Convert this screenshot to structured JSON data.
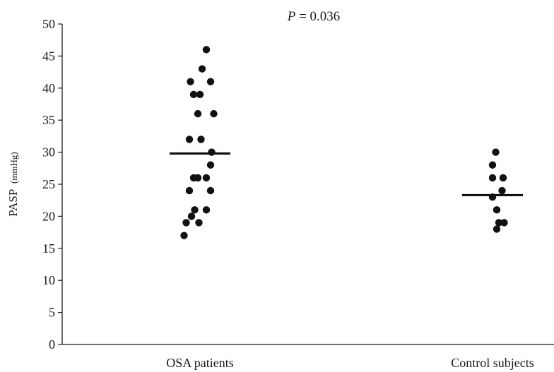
{
  "chart_data": {
    "type": "scatter",
    "title": "",
    "annotation": {
      "italic_part": "P",
      "rest": " = 0.036"
    },
    "ylabel": {
      "main": "PASP",
      "unit": "(mmHg)"
    },
    "xlabel": "",
    "ylim": [
      0,
      50
    ],
    "yticks": [
      0,
      5,
      10,
      15,
      20,
      25,
      30,
      35,
      40,
      45,
      50
    ],
    "categories": [
      "OSA patients",
      "Control subjects"
    ],
    "grid": false,
    "series": [
      {
        "category": "OSA patients",
        "median": 29.8,
        "points": [
          {
            "y": 46,
            "jitter": 0.6
          },
          {
            "y": 43,
            "jitter": 0.2
          },
          {
            "y": 41,
            "jitter": -0.9
          },
          {
            "y": 41,
            "jitter": 1.0
          },
          {
            "y": 39,
            "jitter": -0.6
          },
          {
            "y": 39,
            "jitter": 0.0
          },
          {
            "y": 36,
            "jitter": -0.2
          },
          {
            "y": 36,
            "jitter": 1.3
          },
          {
            "y": 32,
            "jitter": -1.0
          },
          {
            "y": 32,
            "jitter": 0.1
          },
          {
            "y": 30,
            "jitter": 1.1
          },
          {
            "y": 28,
            "jitter": 1.0
          },
          {
            "y": 26,
            "jitter": -0.6
          },
          {
            "y": 26,
            "jitter": -0.2
          },
          {
            "y": 26,
            "jitter": 0.6
          },
          {
            "y": 24,
            "jitter": -1.0
          },
          {
            "y": 24,
            "jitter": 1.0
          },
          {
            "y": 21,
            "jitter": -0.5
          },
          {
            "y": 21,
            "jitter": 0.6
          },
          {
            "y": 20,
            "jitter": -0.8
          },
          {
            "y": 19,
            "jitter": -1.3
          },
          {
            "y": 19,
            "jitter": -0.1
          },
          {
            "y": 17,
            "jitter": -1.5
          }
        ]
      },
      {
        "category": "Control subjects",
        "median": 23.3,
        "points": [
          {
            "y": 30,
            "jitter": 0.3
          },
          {
            "y": 28,
            "jitter": 0.0
          },
          {
            "y": 26,
            "jitter": 0.0
          },
          {
            "y": 26,
            "jitter": 1.0
          },
          {
            "y": 24,
            "jitter": 0.9
          },
          {
            "y": 23,
            "jitter": 0.0
          },
          {
            "y": 21,
            "jitter": 0.4
          },
          {
            "y": 19,
            "jitter": 0.6
          },
          {
            "y": 19,
            "jitter": 1.1
          },
          {
            "y": 18,
            "jitter": 0.4
          }
        ]
      }
    ]
  }
}
